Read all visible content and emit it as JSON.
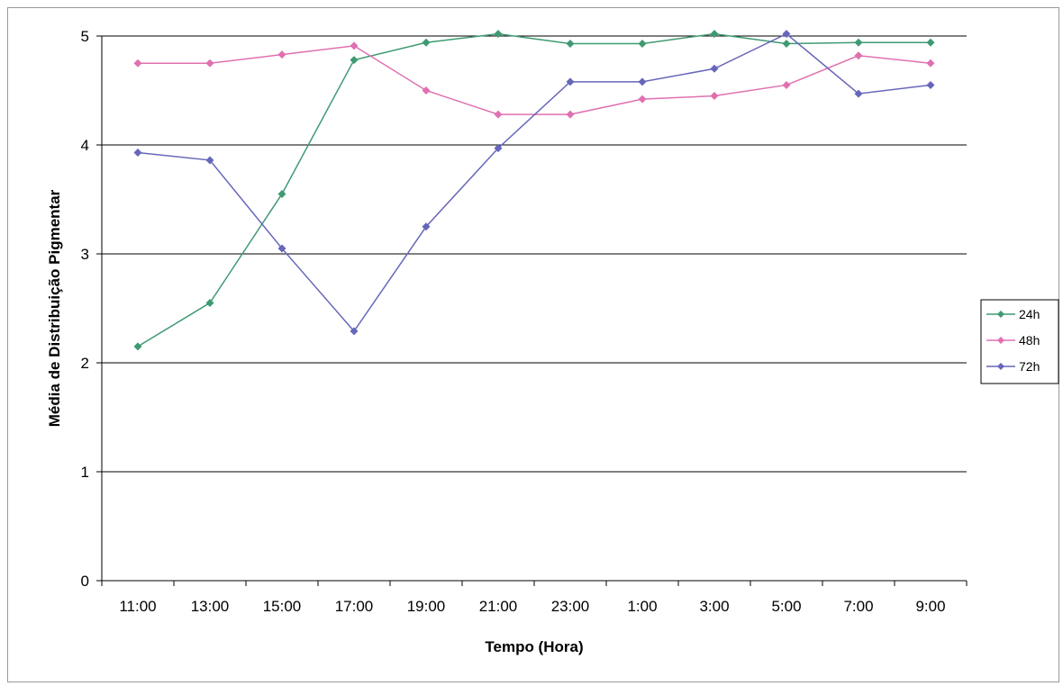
{
  "chart_data": {
    "type": "line",
    "title": "",
    "xlabel": "Tempo (Hora)",
    "ylabel": "Média de Distribuição Pigmentar",
    "ylim": [
      0,
      5
    ],
    "yticks": [
      "0",
      "1",
      "2",
      "3",
      "4",
      "5"
    ],
    "grid": true,
    "legend_position": "right",
    "categories": [
      "11:00",
      "13:00",
      "15:00",
      "17:00",
      "19:00",
      "21:00",
      "23:00",
      "1:00",
      "3:00",
      "5:00",
      "7:00",
      "9:00"
    ],
    "series": [
      {
        "name": "24h",
        "color": "#3f9a72",
        "values": [
          2.15,
          2.55,
          3.55,
          4.78,
          4.94,
          5.02,
          4.93,
          4.93,
          5.02,
          4.93,
          4.94,
          4.94
        ]
      },
      {
        "name": "48h",
        "color": "#e070b0",
        "values": [
          4.75,
          4.75,
          4.83,
          4.91,
          4.5,
          4.28,
          4.28,
          4.42,
          4.45,
          4.55,
          4.82,
          4.75
        ]
      },
      {
        "name": "72h",
        "color": "#6666bb",
        "values": [
          3.93,
          3.86,
          3.05,
          2.29,
          3.25,
          3.97,
          4.58,
          4.58,
          4.7,
          5.02,
          4.47,
          4.55
        ]
      }
    ]
  }
}
